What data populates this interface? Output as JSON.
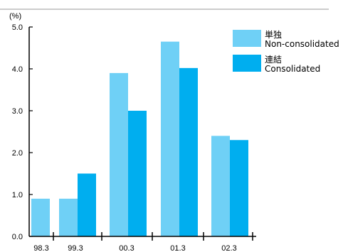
{
  "chart_data": {
    "type": "bar",
    "unit_label": "(%)",
    "categories": [
      "98.3",
      "99.3",
      "00.3",
      "01.3",
      "02.3"
    ],
    "ylim": [
      0,
      5
    ],
    "yticks": [
      "0.0",
      "1.0",
      "2.0",
      "3.0",
      "4.0",
      "5.0"
    ],
    "series": [
      {
        "name_ja": "単独",
        "name_en": "Non-consolidated",
        "color": "#6fd0f6",
        "values": [
          0.9,
          0.9,
          3.9,
          4.65,
          2.4
        ]
      },
      {
        "name_ja": "連結",
        "name_en": "Consolidated",
        "color": "#00aeef",
        "values": [
          null,
          1.5,
          3.0,
          4.02,
          2.3
        ]
      }
    ],
    "legend_position": "top-right",
    "grid": false
  }
}
